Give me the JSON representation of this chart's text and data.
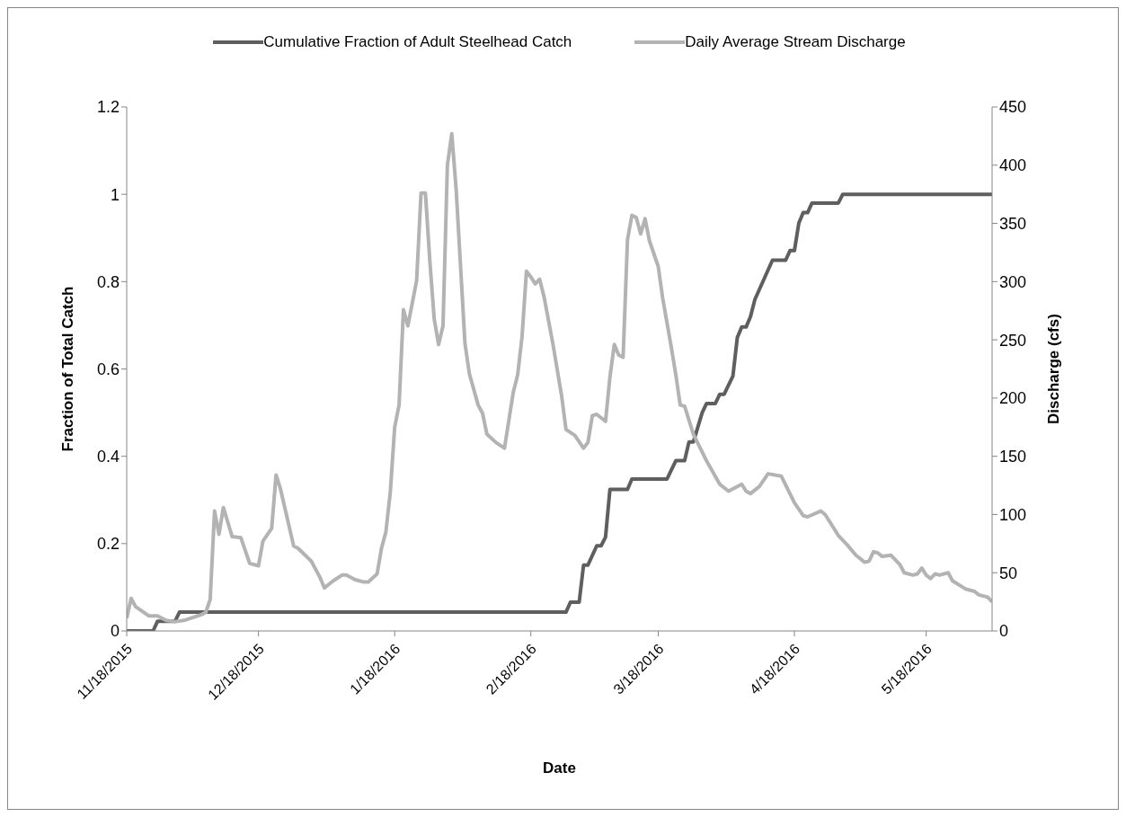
{
  "chart_data": {
    "type": "line",
    "xlabel": "Date",
    "ylabel": "Fraction of Total Catch",
    "y2label": "Discharge (cfs)",
    "legend": "top",
    "grid": false,
    "xlim": [
      "2015-11-18",
      "2016-06-02"
    ],
    "xticks": [
      {
        "value": "2015-11-18",
        "label": "11/18/2015"
      },
      {
        "value": "2015-12-18",
        "label": "12/18/2015"
      },
      {
        "value": "2016-01-18",
        "label": "1/18/2016"
      },
      {
        "value": "2016-02-18",
        "label": "2/18/2016"
      },
      {
        "value": "2016-03-18",
        "label": "3/18/2016"
      },
      {
        "value": "2016-04-18",
        "label": "4/18/2016"
      },
      {
        "value": "2016-05-18",
        "label": "5/18/2016"
      }
    ],
    "ylim": [
      0,
      1.2
    ],
    "yticks": [
      0,
      0.2,
      0.4,
      0.6,
      0.8,
      1,
      1.2
    ],
    "y2lim": [
      0,
      450
    ],
    "y2ticks": [
      0,
      50,
      100,
      150,
      200,
      250,
      300,
      350,
      400,
      450
    ],
    "series": [
      {
        "name": "Cumulative Fraction of Adult Steelhead Catch",
        "color": "#5f5f5f",
        "x": [
          "2015-11-18",
          "2015-11-24",
          "2015-11-25",
          "2015-11-29",
          "2015-11-30",
          "2016-02-26",
          "2016-02-27",
          "2016-02-29",
          "2016-03-01",
          "2016-03-02",
          "2016-03-04",
          "2016-03-05",
          "2016-03-06",
          "2016-03-07",
          "2016-03-11",
          "2016-03-12",
          "2016-03-20",
          "2016-03-22",
          "2016-03-24",
          "2016-03-25",
          "2016-03-26",
          "2016-03-28",
          "2016-03-29",
          "2016-03-31",
          "2016-04-01",
          "2016-04-02",
          "2016-04-04",
          "2016-04-05",
          "2016-04-06",
          "2016-04-07",
          "2016-04-08",
          "2016-04-09",
          "2016-04-13",
          "2016-04-16",
          "2016-04-17",
          "2016-04-18",
          "2016-04-19",
          "2016-04-20",
          "2016-04-21",
          "2016-04-22",
          "2016-04-28",
          "2016-04-29",
          "2016-06-02"
        ],
        "values": [
          0,
          0,
          0.022,
          0.022,
          0.043,
          0.043,
          0.066,
          0.066,
          0.151,
          0.151,
          0.195,
          0.195,
          0.215,
          0.324,
          0.324,
          0.348,
          0.348,
          0.39,
          0.39,
          0.433,
          0.433,
          0.5,
          0.521,
          0.521,
          0.542,
          0.542,
          0.584,
          0.672,
          0.696,
          0.696,
          0.72,
          0.759,
          0.849,
          0.849,
          0.871,
          0.871,
          0.934,
          0.958,
          0.958,
          0.98,
          0.98,
          1,
          1
        ]
      },
      {
        "name": "Daily Average Stream Discharge",
        "color": "#b3b3b3",
        "axis": "y2",
        "x": [
          "2015-11-18",
          "2015-11-19",
          "2015-11-20",
          "2015-11-23",
          "2015-11-25",
          "2015-11-27",
          "2015-11-29",
          "2015-12-01",
          "2015-12-05",
          "2015-12-06",
          "2015-12-07",
          "2015-12-08",
          "2015-12-09",
          "2015-12-10",
          "2015-12-12",
          "2015-12-14",
          "2015-12-16",
          "2015-12-18",
          "2015-12-19",
          "2015-12-21",
          "2015-12-22",
          "2015-12-23",
          "2015-12-26",
          "2015-12-27",
          "2015-12-30",
          "2016-01-01",
          "2016-01-02",
          "2016-01-04",
          "2016-01-06",
          "2016-01-07",
          "2016-01-09",
          "2016-01-11",
          "2016-01-12",
          "2016-01-14",
          "2016-01-15",
          "2016-01-16",
          "2016-01-17",
          "2016-01-18",
          "2016-01-19",
          "2016-01-20",
          "2016-01-21",
          "2016-01-23",
          "2016-01-24",
          "2016-01-25",
          "2016-01-26",
          "2016-01-27",
          "2016-01-28",
          "2016-01-29",
          "2016-01-30",
          "2016-01-31",
          "2016-02-01",
          "2016-02-02",
          "2016-02-03",
          "2016-02-04",
          "2016-02-06",
          "2016-02-07",
          "2016-02-08",
          "2016-02-10",
          "2016-02-12",
          "2016-02-13",
          "2016-02-14",
          "2016-02-15",
          "2016-02-16",
          "2016-02-17",
          "2016-02-18",
          "2016-02-19",
          "2016-02-20",
          "2016-02-21",
          "2016-02-23",
          "2016-02-25",
          "2016-02-26",
          "2016-02-28",
          "2016-03-01",
          "2016-03-02",
          "2016-03-03",
          "2016-03-04",
          "2016-03-06",
          "2016-03-07",
          "2016-03-08",
          "2016-03-09",
          "2016-03-10",
          "2016-03-11",
          "2016-03-12",
          "2016-03-13",
          "2016-03-14",
          "2016-03-15",
          "2016-03-16",
          "2016-03-18",
          "2016-03-19",
          "2016-03-21",
          "2016-03-22",
          "2016-03-23",
          "2016-03-24",
          "2016-03-26",
          "2016-03-29",
          "2016-04-01",
          "2016-04-03",
          "2016-04-06",
          "2016-04-07",
          "2016-04-08",
          "2016-04-10",
          "2016-04-12",
          "2016-04-15",
          "2016-04-18",
          "2016-04-20",
          "2016-04-21",
          "2016-04-24",
          "2016-04-25",
          "2016-04-28",
          "2016-04-30",
          "2016-05-02",
          "2016-05-03",
          "2016-05-04",
          "2016-05-05",
          "2016-05-06",
          "2016-05-07",
          "2016-05-08",
          "2016-05-10",
          "2016-05-12",
          "2016-05-13",
          "2016-05-15",
          "2016-05-16",
          "2016-05-17",
          "2016-05-18",
          "2016-05-19",
          "2016-05-20",
          "2016-05-21",
          "2016-05-23",
          "2016-05-24",
          "2016-05-27",
          "2016-05-29",
          "2016-05-30",
          "2016-06-01",
          "2016-06-02"
        ],
        "values": [
          11,
          28,
          21,
          13,
          13,
          9,
          8,
          9,
          14,
          16,
          27,
          103,
          83,
          106,
          81,
          80,
          58,
          56,
          77,
          88,
          134,
          122,
          73,
          71,
          60,
          46,
          37,
          43,
          48,
          48,
          44,
          42,
          42,
          49,
          71,
          85,
          119,
          175,
          194,
          276,
          262,
          301,
          376,
          376,
          318,
          268,
          246,
          262,
          400,
          427,
          379,
          313,
          247,
          221,
          194,
          187,
          169,
          162,
          157,
          181,
          205,
          220,
          253,
          309,
          304,
          298,
          302,
          287,
          247,
          202,
          173,
          168,
          157,
          162,
          185,
          186,
          180,
          218,
          246,
          237,
          235,
          336,
          357,
          355,
          341,
          354,
          335,
          313,
          286,
          243,
          220,
          194,
          193,
          169,
          146,
          126,
          120,
          126,
          120,
          118,
          124,
          135,
          133,
          110,
          99,
          98,
          103,
          100,
          82,
          74,
          65,
          62,
          59,
          60,
          68,
          67,
          64,
          65,
          57,
          50,
          48,
          49,
          54,
          48,
          45,
          49,
          48,
          50,
          43,
          36,
          34,
          31,
          29,
          25
        ]
      }
    ]
  }
}
